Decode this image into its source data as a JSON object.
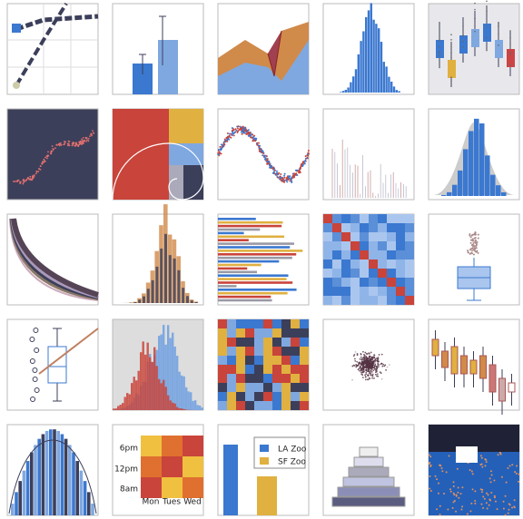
{
  "heatmap": {
    "y_labels": [
      "6pm",
      "12pm",
      "8am"
    ],
    "x_labels": [
      "Mon",
      "Tues",
      "Wed"
    ]
  },
  "legend": {
    "items": [
      "LA Zoo",
      "SF Zoo"
    ]
  }
}
